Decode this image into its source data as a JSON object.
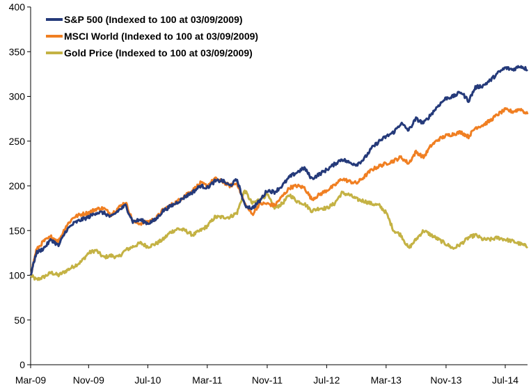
{
  "chart_data": {
    "type": "line",
    "title": "",
    "xlabel": "",
    "ylabel": "",
    "ylim": [
      0,
      400
    ],
    "yticks": [
      0,
      50,
      100,
      150,
      200,
      250,
      300,
      350,
      400
    ],
    "xlim": [
      "2009-03-09",
      "2014-09-30"
    ],
    "xticks": [
      {
        "date": "2009-03-01",
        "label": "Mar-09"
      },
      {
        "date": "2009-11-01",
        "label": "Nov-09"
      },
      {
        "date": "2010-07-01",
        "label": "Jul-10"
      },
      {
        "date": "2011-03-01",
        "label": "Mar-11"
      },
      {
        "date": "2011-11-01",
        "label": "Nov-11"
      },
      {
        "date": "2012-07-01",
        "label": "Jul-12"
      },
      {
        "date": "2013-03-01",
        "label": "Mar-13"
      },
      {
        "date": "2013-11-01",
        "label": "Nov-13"
      },
      {
        "date": "2014-07-01",
        "label": "Jul-14"
      }
    ],
    "grid": false,
    "legend_position": "top-left",
    "series": [
      {
        "name": "S&P 500 (Indexed to 100 at 03/09/2009)",
        "color": "#253a7a",
        "points": [
          [
            "2009-03-09",
            100
          ],
          [
            "2009-04-01",
            125
          ],
          [
            "2009-05-01",
            130
          ],
          [
            "2009-06-01",
            140
          ],
          [
            "2009-07-01",
            133
          ],
          [
            "2009-08-01",
            150
          ],
          [
            "2009-09-01",
            158
          ],
          [
            "2009-10-01",
            162
          ],
          [
            "2009-11-01",
            165
          ],
          [
            "2009-12-01",
            170
          ],
          [
            "2010-01-01",
            170
          ],
          [
            "2010-02-01",
            165
          ],
          [
            "2010-03-01",
            172
          ],
          [
            "2010-04-01",
            178
          ],
          [
            "2010-05-01",
            160
          ],
          [
            "2010-06-01",
            162
          ],
          [
            "2010-07-01",
            158
          ],
          [
            "2010-08-01",
            162
          ],
          [
            "2010-09-01",
            172
          ],
          [
            "2010-10-01",
            177
          ],
          [
            "2010-11-01",
            182
          ],
          [
            "2010-12-01",
            188
          ],
          [
            "2011-01-01",
            193
          ],
          [
            "2011-02-01",
            200
          ],
          [
            "2011-03-01",
            198
          ],
          [
            "2011-04-01",
            205
          ],
          [
            "2011-05-01",
            206
          ],
          [
            "2011-06-01",
            200
          ],
          [
            "2011-07-01",
            207
          ],
          [
            "2011-08-01",
            178
          ],
          [
            "2011-09-01",
            175
          ],
          [
            "2011-10-01",
            183
          ],
          [
            "2011-11-01",
            195
          ],
          [
            "2011-12-01",
            193
          ],
          [
            "2012-01-01",
            200
          ],
          [
            "2012-02-01",
            210
          ],
          [
            "2012-03-01",
            215
          ],
          [
            "2012-04-01",
            220
          ],
          [
            "2012-05-01",
            208
          ],
          [
            "2012-06-01",
            213
          ],
          [
            "2012-07-01",
            218
          ],
          [
            "2012-08-01",
            224
          ],
          [
            "2012-09-01",
            230
          ],
          [
            "2012-10-01",
            226
          ],
          [
            "2012-11-01",
            224
          ],
          [
            "2012-12-01",
            230
          ],
          [
            "2013-01-01",
            242
          ],
          [
            "2013-02-01",
            250
          ],
          [
            "2013-03-01",
            255
          ],
          [
            "2013-04-01",
            260
          ],
          [
            "2013-05-01",
            270
          ],
          [
            "2013-06-01",
            262
          ],
          [
            "2013-07-01",
            275
          ],
          [
            "2013-08-01",
            270
          ],
          [
            "2013-09-01",
            280
          ],
          [
            "2013-10-01",
            290
          ],
          [
            "2013-11-01",
            298
          ],
          [
            "2013-12-01",
            300
          ],
          [
            "2014-01-01",
            305
          ],
          [
            "2014-02-01",
            295
          ],
          [
            "2014-03-01",
            310
          ],
          [
            "2014-04-01",
            312
          ],
          [
            "2014-05-01",
            318
          ],
          [
            "2014-06-01",
            326
          ],
          [
            "2014-07-01",
            332
          ],
          [
            "2014-08-01",
            330
          ],
          [
            "2014-09-01",
            334
          ],
          [
            "2014-09-30",
            330
          ]
        ]
      },
      {
        "name": "MSCI World (Indexed to 100 at 03/09/2009)",
        "color": "#f07f22",
        "points": [
          [
            "2009-03-09",
            100
          ],
          [
            "2009-04-01",
            128
          ],
          [
            "2009-05-01",
            138
          ],
          [
            "2009-06-01",
            143
          ],
          [
            "2009-07-01",
            138
          ],
          [
            "2009-08-01",
            155
          ],
          [
            "2009-09-01",
            165
          ],
          [
            "2009-10-01",
            168
          ],
          [
            "2009-11-01",
            170
          ],
          [
            "2009-12-01",
            174
          ],
          [
            "2010-01-01",
            175
          ],
          [
            "2010-02-01",
            168
          ],
          [
            "2010-03-01",
            175
          ],
          [
            "2010-04-01",
            182
          ],
          [
            "2010-05-01",
            160
          ],
          [
            "2010-06-01",
            158
          ],
          [
            "2010-07-01",
            160
          ],
          [
            "2010-08-01",
            163
          ],
          [
            "2010-09-01",
            173
          ],
          [
            "2010-10-01",
            178
          ],
          [
            "2010-11-01",
            183
          ],
          [
            "2010-12-01",
            190
          ],
          [
            "2011-01-01",
            195
          ],
          [
            "2011-02-01",
            203
          ],
          [
            "2011-03-01",
            200
          ],
          [
            "2011-04-01",
            208
          ],
          [
            "2011-05-01",
            205
          ],
          [
            "2011-06-01",
            200
          ],
          [
            "2011-07-01",
            203
          ],
          [
            "2011-08-01",
            180
          ],
          [
            "2011-09-01",
            168
          ],
          [
            "2011-10-01",
            180
          ],
          [
            "2011-11-01",
            180
          ],
          [
            "2011-12-01",
            178
          ],
          [
            "2012-01-01",
            188
          ],
          [
            "2012-02-01",
            198
          ],
          [
            "2012-03-01",
            200
          ],
          [
            "2012-04-01",
            198
          ],
          [
            "2012-05-01",
            185
          ],
          [
            "2012-06-01",
            190
          ],
          [
            "2012-07-01",
            195
          ],
          [
            "2012-08-01",
            200
          ],
          [
            "2012-09-01",
            208
          ],
          [
            "2012-10-01",
            205
          ],
          [
            "2012-11-01",
            203
          ],
          [
            "2012-12-01",
            210
          ],
          [
            "2013-01-01",
            218
          ],
          [
            "2013-02-01",
            222
          ],
          [
            "2013-03-01",
            225
          ],
          [
            "2013-04-01",
            228
          ],
          [
            "2013-05-01",
            232
          ],
          [
            "2013-06-01",
            225
          ],
          [
            "2013-07-01",
            238
          ],
          [
            "2013-08-01",
            232
          ],
          [
            "2013-09-01",
            245
          ],
          [
            "2013-10-01",
            252
          ],
          [
            "2013-11-01",
            256
          ],
          [
            "2013-12-01",
            258
          ],
          [
            "2014-01-01",
            260
          ],
          [
            "2014-02-01",
            255
          ],
          [
            "2014-03-01",
            265
          ],
          [
            "2014-04-01",
            268
          ],
          [
            "2014-05-01",
            273
          ],
          [
            "2014-06-01",
            280
          ],
          [
            "2014-07-01",
            285
          ],
          [
            "2014-08-01",
            283
          ],
          [
            "2014-09-01",
            286
          ],
          [
            "2014-09-30",
            280
          ]
        ]
      },
      {
        "name": "Gold Price (Indexed to 100 at 03/09/2009)",
        "color": "#c4b244",
        "points": [
          [
            "2009-03-09",
            100
          ],
          [
            "2009-04-01",
            95
          ],
          [
            "2009-05-01",
            98
          ],
          [
            "2009-06-01",
            103
          ],
          [
            "2009-07-01",
            100
          ],
          [
            "2009-08-01",
            105
          ],
          [
            "2009-09-01",
            110
          ],
          [
            "2009-10-01",
            115
          ],
          [
            "2009-11-01",
            125
          ],
          [
            "2009-12-01",
            128
          ],
          [
            "2010-01-01",
            120
          ],
          [
            "2010-02-01",
            122
          ],
          [
            "2010-03-01",
            120
          ],
          [
            "2010-04-01",
            128
          ],
          [
            "2010-05-01",
            132
          ],
          [
            "2010-06-01",
            136
          ],
          [
            "2010-07-01",
            132
          ],
          [
            "2010-08-01",
            135
          ],
          [
            "2010-09-01",
            140
          ],
          [
            "2010-10-01",
            148
          ],
          [
            "2010-11-01",
            152
          ],
          [
            "2010-12-01",
            150
          ],
          [
            "2011-01-01",
            145
          ],
          [
            "2011-02-01",
            150
          ],
          [
            "2011-03-01",
            155
          ],
          [
            "2011-04-01",
            165
          ],
          [
            "2011-05-01",
            165
          ],
          [
            "2011-06-01",
            165
          ],
          [
            "2011-07-01",
            170
          ],
          [
            "2011-08-01",
            195
          ],
          [
            "2011-09-01",
            180
          ],
          [
            "2011-10-01",
            185
          ],
          [
            "2011-11-01",
            190
          ],
          [
            "2011-12-01",
            175
          ],
          [
            "2012-01-01",
            180
          ],
          [
            "2012-02-01",
            190
          ],
          [
            "2012-03-01",
            183
          ],
          [
            "2012-04-01",
            180
          ],
          [
            "2012-05-01",
            172
          ],
          [
            "2012-06-01",
            175
          ],
          [
            "2012-07-01",
            175
          ],
          [
            "2012-08-01",
            180
          ],
          [
            "2012-09-01",
            192
          ],
          [
            "2012-10-01",
            190
          ],
          [
            "2012-11-01",
            185
          ],
          [
            "2012-12-01",
            183
          ],
          [
            "2013-01-01",
            180
          ],
          [
            "2013-02-01",
            178
          ],
          [
            "2013-03-01",
            170
          ],
          [
            "2013-04-01",
            150
          ],
          [
            "2013-05-01",
            145
          ],
          [
            "2013-06-01",
            130
          ],
          [
            "2013-07-01",
            140
          ],
          [
            "2013-08-01",
            150
          ],
          [
            "2013-09-01",
            145
          ],
          [
            "2013-10-01",
            140
          ],
          [
            "2013-11-01",
            135
          ],
          [
            "2013-12-01",
            130
          ],
          [
            "2014-01-01",
            135
          ],
          [
            "2014-02-01",
            142
          ],
          [
            "2014-03-01",
            145
          ],
          [
            "2014-04-01",
            140
          ],
          [
            "2014-05-01",
            140
          ],
          [
            "2014-06-01",
            142
          ],
          [
            "2014-07-01",
            140
          ],
          [
            "2014-08-01",
            138
          ],
          [
            "2014-09-01",
            135
          ],
          [
            "2014-09-30",
            132
          ]
        ]
      }
    ]
  }
}
